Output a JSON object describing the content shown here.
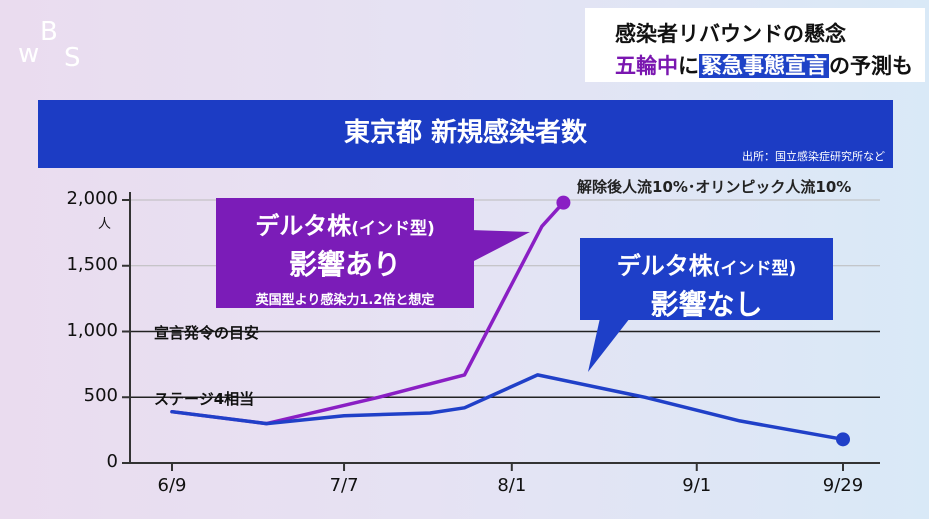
{
  "logo": {
    "text": "WBS"
  },
  "headline": {
    "line1": "感染者リバウンドの懸念",
    "line2_part1": "五輪中",
    "line2_part2": "に",
    "line2_part3": "緊急事態宣言",
    "line2_part4": "の予測も"
  },
  "chart_data": {
    "type": "line",
    "title": "東京都 新規感染者数",
    "source": "出所：国立感染症研究所など",
    "x_ticks": [
      "6/9",
      "7/7",
      "8/1",
      "9/1",
      "9/29"
    ],
    "y_ticks": [
      "2,000",
      "1,500",
      "1,000",
      "500",
      "0"
    ],
    "y_unit": "人",
    "ylim": [
      0,
      2000
    ],
    "note": "解除後人流10%･オリンピック人流10%",
    "reference_lines": [
      {
        "label": "宣言発令の目安",
        "value": 1000
      },
      {
        "label": "ステージ4相当",
        "value": 500
      }
    ],
    "series": [
      {
        "name": "デルタ株(インド型)影響あり",
        "color": "#8a1fc4",
        "points": [
          [
            0,
            390
          ],
          [
            1.1,
            300
          ],
          [
            2.4,
            500
          ],
          [
            3.4,
            670
          ],
          [
            4.3,
            1800
          ],
          [
            4.55,
            1980
          ]
        ]
      },
      {
        "name": "デルタ株(インド型)影響なし",
        "color": "#2040c8",
        "points": [
          [
            0,
            390
          ],
          [
            1.1,
            300
          ],
          [
            2,
            360
          ],
          [
            3,
            380
          ],
          [
            3.4,
            420
          ],
          [
            4.25,
            670
          ],
          [
            5.5,
            500
          ],
          [
            6.6,
            320
          ],
          [
            7.8,
            180
          ]
        ]
      }
    ],
    "x_tick_positions": [
      0,
      2,
      3.95,
      6.1,
      7.8
    ],
    "xlim": [
      0,
      7.8
    ]
  },
  "callout_delta": {
    "line1": "デルタ株",
    "line1_paren": "(インド型)",
    "line2": "影響あり",
    "line3": "英国型より感染力1.2倍と想定"
  },
  "callout_nodelta": {
    "line1": "デルタ株",
    "line1_paren": "(インド型)",
    "line2": "影響なし"
  },
  "colors": {
    "title_bg": "#1c3cc4",
    "purple": "#8a1fc4",
    "blue": "#2040c8"
  }
}
